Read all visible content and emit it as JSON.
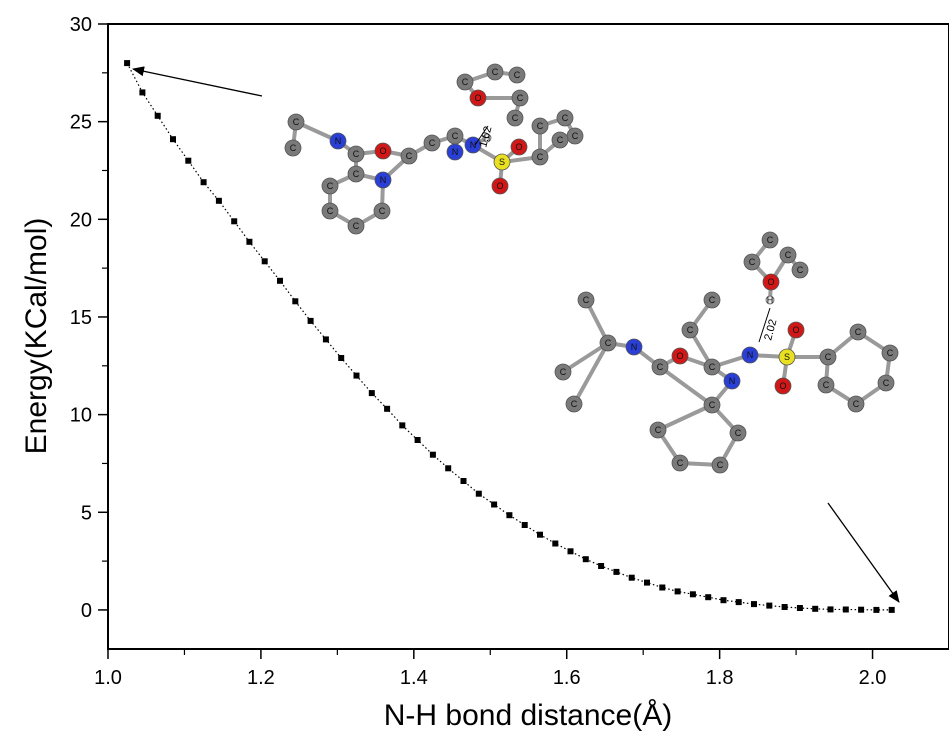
{
  "chart_data": {
    "type": "scatter",
    "xlabel": "N-H bond distance(Å)",
    "ylabel": "Energy(KCal/mol)",
    "xlim": [
      1.0,
      2.1
    ],
    "ylim": [
      -2,
      30
    ],
    "xticks": [
      "1.0",
      "1.2",
      "1.4",
      "1.6",
      "1.8",
      "2.0"
    ],
    "yticks": [
      "0",
      "5",
      "10",
      "15",
      "20",
      "25",
      "30"
    ],
    "grid": false,
    "legend": "none",
    "series": [
      {
        "marker": "square",
        "line": "dotted",
        "color": "#000000",
        "x": [
          1.025,
          1.045,
          1.065,
          1.085,
          1.105,
          1.125,
          1.145,
          1.165,
          1.185,
          1.205,
          1.225,
          1.245,
          1.265,
          1.285,
          1.305,
          1.325,
          1.345,
          1.365,
          1.385,
          1.405,
          1.425,
          1.445,
          1.465,
          1.485,
          1.505,
          1.525,
          1.545,
          1.565,
          1.585,
          1.605,
          1.625,
          1.645,
          1.665,
          1.685,
          1.705,
          1.725,
          1.745,
          1.765,
          1.785,
          1.805,
          1.825,
          1.845,
          1.865,
          1.885,
          1.905,
          1.925,
          1.945,
          1.965,
          1.985,
          2.005,
          2.025
        ],
        "y": [
          28.0,
          26.5,
          25.3,
          24.1,
          23.0,
          21.9,
          20.95,
          19.9,
          18.85,
          17.85,
          16.85,
          15.8,
          14.8,
          13.85,
          12.9,
          12.0,
          11.1,
          10.3,
          9.45,
          8.7,
          7.95,
          7.25,
          6.6,
          5.95,
          5.4,
          4.85,
          4.35,
          3.85,
          3.4,
          3.0,
          2.6,
          2.25,
          1.95,
          1.65,
          1.4,
          1.15,
          0.95,
          0.8,
          0.65,
          0.5,
          0.4,
          0.3,
          0.22,
          0.15,
          0.1,
          0.06,
          0.03,
          0.02,
          0.01,
          0.0,
          0.0
        ]
      }
    ],
    "annotations": [
      {
        "type": "arrow",
        "from": "molecule-top",
        "to": "first-point",
        "label": "1.02"
      },
      {
        "type": "arrow",
        "from": "molecule-bottom",
        "to": "last-point",
        "label": "2.02"
      }
    ]
  },
  "molecule_top": {
    "atoms": [
      "C",
      "C",
      "N",
      "C",
      "O",
      "C",
      "N",
      "C",
      "C",
      "C",
      "C",
      "C",
      "C",
      "C",
      "N",
      "N",
      "S",
      "O",
      "O",
      "C",
      "C",
      "C",
      "C",
      "O",
      "C",
      "C",
      "C",
      "C",
      "C",
      "C",
      "H"
    ],
    "distance_label": "1.02"
  },
  "molecule_bottom": {
    "atoms": [
      "C",
      "C",
      "C",
      "C",
      "N",
      "C",
      "O",
      "C",
      "N",
      "C",
      "C",
      "C",
      "C",
      "C",
      "C",
      "C",
      "N",
      "S",
      "O",
      "O",
      "C",
      "C",
      "C",
      "C",
      "C",
      "C",
      "C",
      "O",
      "C",
      "C",
      "C",
      "H"
    ],
    "distance_label": "2.02"
  },
  "colors": {
    "axis": "#000000",
    "carbon": "#7a7a7a",
    "nitrogen": "#2a3fd6",
    "oxygen": "#d01818",
    "sulfur": "#e8e020",
    "hydrogen": "#e8e8e8"
  }
}
